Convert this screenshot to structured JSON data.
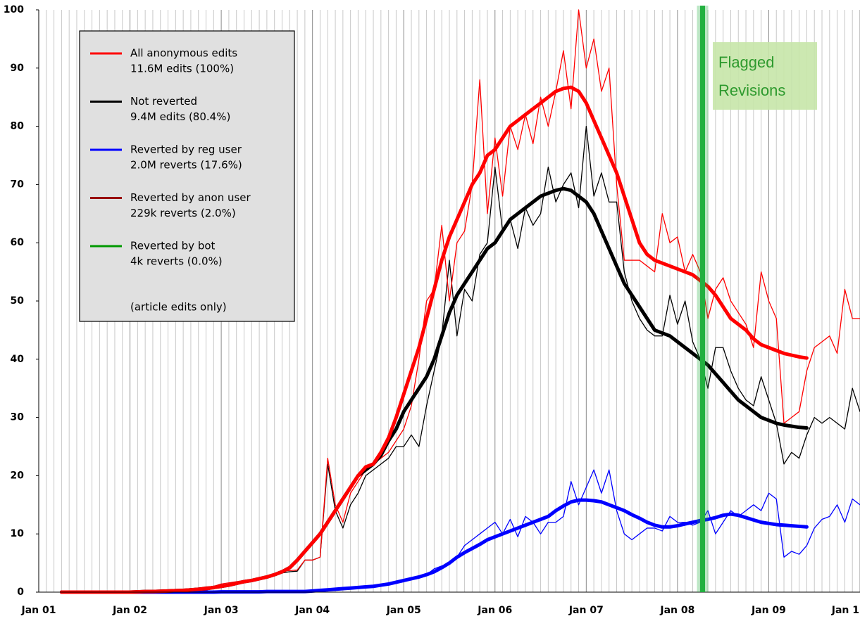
{
  "chart_data": {
    "type": "line",
    "categories": [
      "Jan 01",
      null,
      null,
      null,
      null,
      null,
      null,
      null,
      null,
      null,
      null,
      null,
      "Jan 02",
      null,
      null,
      null,
      null,
      null,
      null,
      null,
      null,
      null,
      null,
      null,
      "Jan 03",
      null,
      null,
      null,
      null,
      null,
      null,
      null,
      null,
      null,
      null,
      null,
      "Jan 04",
      null,
      null,
      null,
      null,
      null,
      null,
      null,
      null,
      null,
      null,
      null,
      "Jan 05",
      null,
      null,
      null,
      null,
      null,
      null,
      null,
      null,
      null,
      null,
      null,
      "Jan 06",
      null,
      null,
      null,
      null,
      null,
      null,
      null,
      null,
      null,
      null,
      null,
      "Jan 07",
      null,
      null,
      null,
      null,
      null,
      null,
      null,
      null,
      null,
      null,
      null,
      "Jan 08",
      null,
      null,
      null,
      null,
      null,
      null,
      null,
      null,
      null,
      null,
      null,
      "Jan 09",
      null,
      null,
      null,
      null,
      null,
      null,
      null,
      null,
      null,
      null,
      null,
      "Jan 1"
    ],
    "ylim": [
      0,
      100
    ],
    "yticks": [
      0,
      10,
      20,
      30,
      40,
      50,
      60,
      70,
      80,
      90,
      100
    ],
    "grid": "x",
    "series": [
      {
        "name": "All anonymous edits",
        "detail": "11.6M  edits (100%)",
        "color": "#ff0000",
        "values": [
          null,
          null,
          null,
          0,
          0,
          0,
          0,
          0,
          0,
          0,
          0,
          0,
          0.1,
          0.1,
          0.2,
          0.2,
          0.3,
          0.3,
          0.4,
          0.5,
          0.6,
          0.7,
          0.9,
          1.0,
          1.4,
          1.6,
          1.8,
          2.0,
          2.2,
          2.5,
          2.8,
          3.2,
          3.6,
          3.7,
          3.8,
          5.5,
          5.5,
          6.0,
          23,
          15,
          12,
          17,
          19,
          21,
          22,
          23,
          24,
          26,
          28,
          32,
          40,
          50,
          52,
          63,
          50,
          60,
          62,
          70,
          88,
          65,
          78,
          68,
          80,
          76,
          82,
          77,
          85,
          80,
          86,
          93,
          83,
          100,
          90,
          95,
          86,
          90,
          70,
          57,
          57,
          57,
          56,
          55,
          65,
          60,
          61,
          55,
          58,
          55,
          47,
          52,
          54,
          50,
          48,
          46,
          42,
          55,
          50,
          47,
          29,
          30,
          31,
          38,
          42,
          43,
          44,
          41,
          52,
          47,
          47
        ],
        "smooth": [
          null,
          null,
          null,
          0,
          0,
          0,
          0,
          0,
          0,
          0,
          0,
          0,
          0,
          0.05,
          0.1,
          0.1,
          0.15,
          0.2,
          0.25,
          0.3,
          0.4,
          0.5,
          0.6,
          0.8,
          1.0,
          1.2,
          1.5,
          1.8,
          2.0,
          2.3,
          2.6,
          3.0,
          3.5,
          4.2,
          5.5,
          7.0,
          8.5,
          10,
          12,
          14,
          16,
          18,
          20,
          21.5,
          22,
          24,
          26.5,
          30,
          34,
          38,
          42,
          47,
          52,
          57,
          61,
          64,
          67,
          70,
          72,
          75,
          76,
          78,
          80,
          81,
          82,
          83,
          84,
          85,
          86,
          86.5,
          86.7,
          86,
          84,
          81,
          78,
          75,
          72,
          68,
          64,
          60,
          58,
          57,
          56.5,
          56,
          55.5,
          55,
          54.5,
          53.5,
          52.5,
          51,
          49,
          47,
          46,
          45,
          43.5,
          42.5,
          42,
          41.5,
          41,
          40.7,
          40.4,
          40.2,
          null,
          null,
          null,
          null,
          null,
          null,
          null
        ]
      },
      {
        "name": "Not reverted",
        "detail": "9.4M edits (80.4%)",
        "color": "#000000",
        "values": [
          null,
          null,
          null,
          0,
          0,
          0,
          0,
          0,
          0,
          0,
          0,
          0,
          0.1,
          0.1,
          0.2,
          0.2,
          0.3,
          0.3,
          0.4,
          0.4,
          0.5,
          0.6,
          0.8,
          0.9,
          1.2,
          1.4,
          1.6,
          1.8,
          2.0,
          2.3,
          2.6,
          3.0,
          3.3,
          3.5,
          3.6,
          5.5,
          5.5,
          6,
          22,
          14,
          11,
          15,
          17,
          20,
          21,
          22,
          23,
          25,
          25,
          27,
          25,
          32,
          38,
          44,
          57,
          44,
          52,
          50,
          58,
          60,
          73,
          62,
          64,
          59,
          66,
          63,
          65,
          73,
          67,
          70,
          72,
          66,
          80,
          68,
          72,
          67,
          67,
          55,
          50,
          47,
          45,
          44,
          44,
          51,
          46,
          50,
          43,
          40,
          35,
          42,
          42,
          38,
          35,
          33,
          32,
          37,
          33,
          29,
          22,
          24,
          23,
          27,
          30,
          29,
          30,
          29,
          28,
          35,
          31
        ],
        "smooth": [
          null,
          null,
          null,
          0,
          0,
          0,
          0,
          0,
          0,
          0,
          0,
          0,
          0,
          0.05,
          0.1,
          0.1,
          0.15,
          0.2,
          0.25,
          0.3,
          0.4,
          0.5,
          0.6,
          0.8,
          1.0,
          1.2,
          1.5,
          1.8,
          2.0,
          2.3,
          2.6,
          3.0,
          3.5,
          4.2,
          5.5,
          7.0,
          8.5,
          10,
          12,
          14,
          16,
          18,
          20,
          21,
          22,
          23.5,
          26,
          28,
          31,
          33,
          35,
          37,
          40,
          44,
          48,
          51,
          53,
          55,
          57,
          59,
          60,
          62,
          64,
          65,
          66,
          67,
          68,
          68.5,
          69,
          69.3,
          69,
          68,
          67,
          65,
          62,
          59,
          56,
          53,
          51,
          49,
          47,
          45,
          44.5,
          44,
          43,
          42,
          41,
          40,
          39,
          37.5,
          36,
          34.5,
          33,
          32,
          31,
          30,
          29.5,
          29,
          28.7,
          28.5,
          28.3,
          28.2,
          null,
          null,
          null,
          null,
          null,
          null,
          null
        ]
      },
      {
        "name": "Reverted by reg user",
        "detail": "2.0M reverts (17.6%)",
        "color": "#0000ff",
        "values": [
          null,
          null,
          null,
          0,
          0,
          0,
          0,
          0,
          0,
          0,
          0,
          0,
          0,
          0,
          0,
          0,
          0,
          0,
          0,
          0,
          0,
          0,
          0,
          0,
          0.1,
          0.1,
          0.1,
          0.1,
          0.1,
          0.1,
          0.1,
          0.1,
          0.1,
          0.1,
          0.1,
          0.1,
          0.3,
          0.3,
          0.4,
          0.5,
          0.6,
          0.7,
          0.8,
          0.9,
          1.0,
          1.1,
          1.3,
          1.5,
          2,
          2.2,
          2.5,
          3,
          4,
          4.5,
          5,
          6,
          8,
          9,
          10,
          11,
          12,
          10,
          12.5,
          9.5,
          13,
          12,
          10,
          12,
          12,
          13,
          19,
          15,
          18,
          21,
          17,
          21,
          14,
          10,
          9,
          10,
          11,
          11,
          10.5,
          13,
          12,
          12,
          11.5,
          12,
          14,
          10,
          12,
          14,
          13,
          14,
          15,
          14,
          17,
          16,
          6,
          7,
          6.5,
          8,
          11,
          12.5,
          13,
          15,
          12,
          16,
          15
        ],
        "smooth": [
          null,
          null,
          null,
          0,
          0,
          0,
          0,
          0,
          0,
          0,
          0,
          0,
          0,
          0,
          0,
          0,
          0,
          0,
          0,
          0,
          0,
          0,
          0,
          0,
          0.05,
          0.05,
          0.05,
          0.05,
          0.05,
          0.05,
          0.1,
          0.1,
          0.1,
          0.1,
          0.1,
          0.1,
          0.2,
          0.3,
          0.4,
          0.5,
          0.6,
          0.7,
          0.8,
          0.9,
          1.0,
          1.2,
          1.4,
          1.7,
          2,
          2.3,
          2.6,
          3,
          3.5,
          4.2,
          5,
          6,
          6.8,
          7.5,
          8.2,
          9,
          9.5,
          10,
          10.5,
          11,
          11.5,
          12,
          12.5,
          13,
          14,
          14.8,
          15.5,
          15.8,
          15.8,
          15.7,
          15.5,
          15,
          14.5,
          14,
          13.3,
          12.7,
          12,
          11.5,
          11.2,
          11.2,
          11.4,
          11.7,
          12,
          12.3,
          12.5,
          12.8,
          13.2,
          13.4,
          13.2,
          12.8,
          12.4,
          12,
          11.8,
          11.6,
          11.5,
          11.4,
          11.3,
          11.2,
          null,
          null,
          null,
          null,
          null,
          null,
          null
        ]
      },
      {
        "name": "Reverted by anon user",
        "detail": "229k reverts (2.0%)",
        "color": "#990000"
      },
      {
        "name": "Reverted by bot",
        "detail": "4k reverts (0.0%)",
        "color": "#009900"
      }
    ],
    "legend_note": "(article edits only)",
    "annotation": {
      "text": [
        "Flagged",
        "Revisions"
      ],
      "x": 87.3,
      "color": "#22b040"
    }
  }
}
